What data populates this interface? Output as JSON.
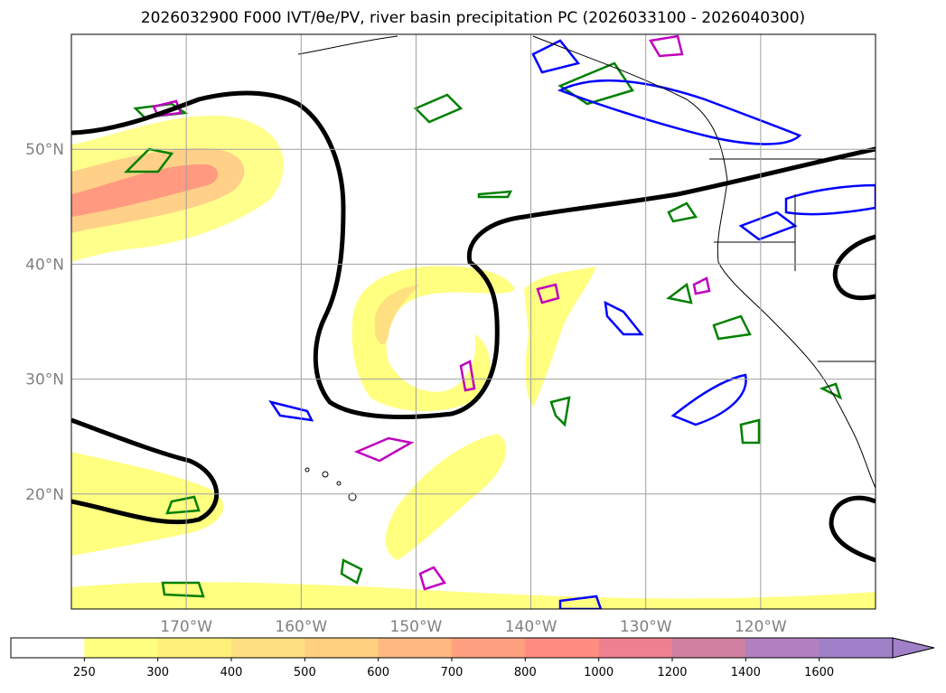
{
  "title": "2026032900 F000 IVT/θe/PV, river basin precipitation PC (2026033100 - 2026040300)",
  "map": {
    "lon_range": [
      -180,
      -110
    ],
    "lat_range": [
      10,
      60
    ],
    "lon_ticks": [
      {
        "lon": -170,
        "label": "170°W"
      },
      {
        "lon": -160,
        "label": "160°W"
      },
      {
        "lon": -150,
        "label": "150°W"
      },
      {
        "lon": -140,
        "label": "140°W"
      },
      {
        "lon": -130,
        "label": "130°W"
      },
      {
        "lon": -120,
        "label": "120°W"
      }
    ],
    "lat_ticks": [
      {
        "lat": 50,
        "label": "50°N"
      },
      {
        "lat": 40,
        "label": "40°N"
      },
      {
        "lat": 30,
        "label": "30°N"
      },
      {
        "lat": 20,
        "label": "20°N"
      }
    ],
    "gridlines": true
  },
  "colorbar": {
    "levels": [
      "250",
      "300",
      "400",
      "500",
      "600",
      "700",
      "800",
      "1000",
      "1200",
      "1400",
      "1600"
    ],
    "colors": [
      "#ffffff",
      "#ffff80",
      "#fff07a",
      "#ffe080",
      "#ffd080",
      "#ffb880",
      "#ffa080",
      "#ff8c80",
      "#ee8090",
      "#d080a0",
      "#b080c0",
      "#a080c8"
    ],
    "extend": "max"
  },
  "styles": {
    "ivt_colors": [
      "#ffff80",
      "#ffe87c",
      "#ffd088",
      "#ffb080",
      "#ff9a80"
    ],
    "theta_color": "#000000",
    "pv_color_green": "#008000",
    "pv_color_blue": "#0000ff",
    "pv_color_magenta": "#c000c0"
  }
}
